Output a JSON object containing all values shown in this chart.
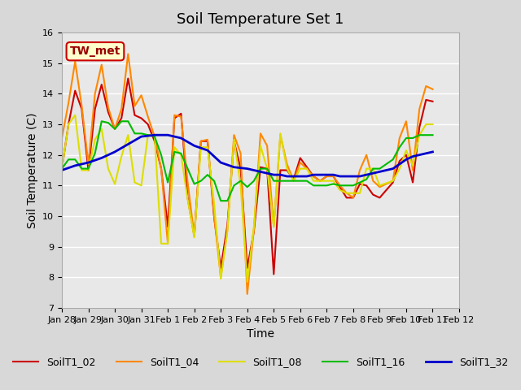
{
  "title": "Soil Temperature Set 1",
  "xlabel": "Time",
  "ylabel": "Soil Temperature (C)",
  "ylim": [
    7.0,
    16.0
  ],
  "yticks": [
    7.0,
    8.0,
    9.0,
    10.0,
    11.0,
    12.0,
    13.0,
    14.0,
    15.0,
    16.0
  ],
  "annotation_text": "TW_met",
  "annotation_bg": "#ffffcc",
  "annotation_border": "#cc0000",
  "series": {
    "SoilT1_02": {
      "color": "#cc0000",
      "linewidth": 1.5,
      "data": [
        [
          0.0,
          11.55
        ],
        [
          0.25,
          13.0
        ],
        [
          0.5,
          14.1
        ],
        [
          0.75,
          13.5
        ],
        [
          1.0,
          11.5
        ],
        [
          1.25,
          13.5
        ],
        [
          1.5,
          14.3
        ],
        [
          1.75,
          13.4
        ],
        [
          2.0,
          12.85
        ],
        [
          2.25,
          13.2
        ],
        [
          2.5,
          14.5
        ],
        [
          2.75,
          13.3
        ],
        [
          3.0,
          13.2
        ],
        [
          3.25,
          13.0
        ],
        [
          3.5,
          12.45
        ],
        [
          3.75,
          11.55
        ],
        [
          4.0,
          9.65
        ],
        [
          4.25,
          13.2
        ],
        [
          4.5,
          13.35
        ],
        [
          4.75,
          10.6
        ],
        [
          5.0,
          9.35
        ],
        [
          5.25,
          12.45
        ],
        [
          5.5,
          12.45
        ],
        [
          5.75,
          9.95
        ],
        [
          6.0,
          8.3
        ],
        [
          6.25,
          9.7
        ],
        [
          6.5,
          12.45
        ],
        [
          6.75,
          11.55
        ],
        [
          7.0,
          8.3
        ],
        [
          7.25,
          9.5
        ],
        [
          7.5,
          11.6
        ],
        [
          7.75,
          11.55
        ],
        [
          8.0,
          8.1
        ],
        [
          8.25,
          11.5
        ],
        [
          8.5,
          11.5
        ],
        [
          8.75,
          11.2
        ],
        [
          9.0,
          11.9
        ],
        [
          9.25,
          11.6
        ],
        [
          9.5,
          11.3
        ],
        [
          9.75,
          11.15
        ],
        [
          10.0,
          11.3
        ],
        [
          10.25,
          11.3
        ],
        [
          10.5,
          10.95
        ],
        [
          10.75,
          10.6
        ],
        [
          11.0,
          10.6
        ],
        [
          11.25,
          11.05
        ],
        [
          11.5,
          11.0
        ],
        [
          11.75,
          10.7
        ],
        [
          12.0,
          10.6
        ],
        [
          12.5,
          11.1
        ],
        [
          12.75,
          11.8
        ],
        [
          13.0,
          12.0
        ],
        [
          13.25,
          11.1
        ],
        [
          13.5,
          12.9
        ],
        [
          13.75,
          13.8
        ],
        [
          14.0,
          13.75
        ]
      ]
    },
    "SoilT1_04": {
      "color": "#ff8800",
      "linewidth": 1.5,
      "data": [
        [
          0.0,
          12.55
        ],
        [
          0.25,
          13.7
        ],
        [
          0.5,
          15.05
        ],
        [
          0.75,
          13.6
        ],
        [
          1.0,
          11.7
        ],
        [
          1.25,
          14.0
        ],
        [
          1.5,
          14.95
        ],
        [
          1.75,
          13.55
        ],
        [
          2.0,
          12.85
        ],
        [
          2.25,
          13.5
        ],
        [
          2.5,
          15.3
        ],
        [
          2.75,
          13.6
        ],
        [
          3.0,
          13.95
        ],
        [
          3.25,
          13.25
        ],
        [
          3.5,
          12.6
        ],
        [
          3.75,
          11.55
        ],
        [
          4.0,
          9.1
        ],
        [
          4.25,
          13.3
        ],
        [
          4.5,
          13.25
        ],
        [
          4.75,
          11.1
        ],
        [
          5.0,
          9.35
        ],
        [
          5.25,
          12.45
        ],
        [
          5.5,
          12.5
        ],
        [
          5.75,
          10.0
        ],
        [
          6.0,
          8.0
        ],
        [
          6.25,
          9.55
        ],
        [
          6.5,
          12.65
        ],
        [
          6.75,
          12.05
        ],
        [
          7.0,
          7.45
        ],
        [
          7.25,
          9.55
        ],
        [
          7.5,
          12.7
        ],
        [
          7.75,
          12.3
        ],
        [
          8.0,
          9.65
        ],
        [
          8.25,
          12.65
        ],
        [
          8.5,
          11.7
        ],
        [
          8.75,
          11.15
        ],
        [
          9.0,
          11.75
        ],
        [
          9.25,
          11.55
        ],
        [
          9.5,
          11.3
        ],
        [
          9.75,
          11.15
        ],
        [
          10.0,
          11.3
        ],
        [
          10.25,
          11.3
        ],
        [
          10.5,
          11.0
        ],
        [
          10.75,
          10.75
        ],
        [
          11.0,
          10.6
        ],
        [
          11.25,
          11.5
        ],
        [
          11.5,
          12.0
        ],
        [
          11.75,
          11.15
        ],
        [
          12.0,
          10.95
        ],
        [
          12.5,
          11.15
        ],
        [
          12.75,
          12.55
        ],
        [
          13.0,
          13.1
        ],
        [
          13.25,
          11.5
        ],
        [
          13.5,
          13.5
        ],
        [
          13.75,
          14.25
        ],
        [
          14.0,
          14.15
        ]
      ]
    },
    "SoilT1_08": {
      "color": "#dddd00",
      "linewidth": 1.5,
      "data": [
        [
          0.0,
          11.55
        ],
        [
          0.25,
          13.0
        ],
        [
          0.5,
          13.3
        ],
        [
          0.75,
          11.5
        ],
        [
          1.0,
          11.5
        ],
        [
          1.25,
          12.5
        ],
        [
          1.5,
          12.85
        ],
        [
          1.75,
          11.55
        ],
        [
          2.0,
          11.05
        ],
        [
          2.25,
          11.95
        ],
        [
          2.5,
          12.65
        ],
        [
          2.75,
          11.1
        ],
        [
          3.0,
          11.0
        ],
        [
          3.25,
          12.65
        ],
        [
          3.5,
          12.65
        ],
        [
          3.75,
          9.1
        ],
        [
          4.0,
          9.1
        ],
        [
          4.25,
          12.25
        ],
        [
          4.5,
          12.0
        ],
        [
          4.75,
          10.55
        ],
        [
          5.0,
          9.3
        ],
        [
          5.25,
          12.25
        ],
        [
          5.5,
          12.25
        ],
        [
          5.75,
          10.4
        ],
        [
          6.0,
          7.95
        ],
        [
          6.25,
          9.5
        ],
        [
          6.5,
          12.5
        ],
        [
          6.75,
          11.0
        ],
        [
          7.0,
          7.85
        ],
        [
          7.25,
          9.65
        ],
        [
          7.5,
          12.3
        ],
        [
          7.75,
          11.55
        ],
        [
          8.0,
          9.65
        ],
        [
          8.25,
          12.7
        ],
        [
          8.5,
          11.55
        ],
        [
          8.75,
          11.15
        ],
        [
          9.0,
          11.55
        ],
        [
          9.25,
          11.55
        ],
        [
          9.5,
          11.15
        ],
        [
          9.75,
          11.15
        ],
        [
          10.0,
          11.15
        ],
        [
          10.25,
          11.15
        ],
        [
          10.5,
          10.85
        ],
        [
          10.75,
          10.75
        ],
        [
          11.0,
          10.75
        ],
        [
          11.25,
          10.75
        ],
        [
          11.5,
          11.55
        ],
        [
          11.75,
          11.55
        ],
        [
          12.0,
          11.0
        ],
        [
          12.5,
          11.15
        ],
        [
          12.75,
          11.55
        ],
        [
          13.0,
          12.15
        ],
        [
          13.25,
          11.65
        ],
        [
          13.5,
          12.65
        ],
        [
          13.75,
          13.0
        ],
        [
          14.0,
          13.0
        ]
      ]
    },
    "SoilT1_16": {
      "color": "#00bb00",
      "linewidth": 1.5,
      "data": [
        [
          0.0,
          11.55
        ],
        [
          0.25,
          11.85
        ],
        [
          0.5,
          11.85
        ],
        [
          0.75,
          11.55
        ],
        [
          1.0,
          11.55
        ],
        [
          1.25,
          12.05
        ],
        [
          1.5,
          13.1
        ],
        [
          1.75,
          13.05
        ],
        [
          2.0,
          12.85
        ],
        [
          2.25,
          13.1
        ],
        [
          2.5,
          13.1
        ],
        [
          2.75,
          12.7
        ],
        [
          3.0,
          12.7
        ],
        [
          3.25,
          12.65
        ],
        [
          3.5,
          12.6
        ],
        [
          3.75,
          12.0
        ],
        [
          4.0,
          11.1
        ],
        [
          4.25,
          12.1
        ],
        [
          4.5,
          12.05
        ],
        [
          4.75,
          11.55
        ],
        [
          5.0,
          11.05
        ],
        [
          5.25,
          11.15
        ],
        [
          5.5,
          11.35
        ],
        [
          5.75,
          11.15
        ],
        [
          6.0,
          10.5
        ],
        [
          6.25,
          10.5
        ],
        [
          6.5,
          11.0
        ],
        [
          6.75,
          11.15
        ],
        [
          7.0,
          10.95
        ],
        [
          7.25,
          11.15
        ],
        [
          7.5,
          11.55
        ],
        [
          7.75,
          11.55
        ],
        [
          8.0,
          11.15
        ],
        [
          8.25,
          11.15
        ],
        [
          8.5,
          11.15
        ],
        [
          8.75,
          11.15
        ],
        [
          9.0,
          11.15
        ],
        [
          9.25,
          11.15
        ],
        [
          9.5,
          11.0
        ],
        [
          9.75,
          11.0
        ],
        [
          10.0,
          11.0
        ],
        [
          10.25,
          11.05
        ],
        [
          10.5,
          11.0
        ],
        [
          10.75,
          11.0
        ],
        [
          11.0,
          11.0
        ],
        [
          11.25,
          11.1
        ],
        [
          11.5,
          11.2
        ],
        [
          11.75,
          11.55
        ],
        [
          12.0,
          11.55
        ],
        [
          12.5,
          11.85
        ],
        [
          12.75,
          12.25
        ],
        [
          13.0,
          12.55
        ],
        [
          13.25,
          12.55
        ],
        [
          13.5,
          12.65
        ],
        [
          13.75,
          12.65
        ],
        [
          14.0,
          12.65
        ]
      ]
    },
    "SoilT1_32": {
      "color": "#0000cc",
      "linewidth": 2.0,
      "data": [
        [
          0.0,
          11.5
        ],
        [
          0.5,
          11.65
        ],
        [
          1.0,
          11.75
        ],
        [
          1.5,
          11.9
        ],
        [
          2.0,
          12.1
        ],
        [
          2.5,
          12.35
        ],
        [
          3.0,
          12.6
        ],
        [
          3.5,
          12.65
        ],
        [
          4.0,
          12.65
        ],
        [
          4.5,
          12.55
        ],
        [
          5.0,
          12.3
        ],
        [
          5.5,
          12.15
        ],
        [
          6.0,
          11.75
        ],
        [
          6.5,
          11.6
        ],
        [
          7.0,
          11.55
        ],
        [
          7.5,
          11.45
        ],
        [
          8.0,
          11.35
        ],
        [
          8.25,
          11.35
        ],
        [
          8.5,
          11.3
        ],
        [
          8.75,
          11.3
        ],
        [
          9.0,
          11.3
        ],
        [
          9.25,
          11.3
        ],
        [
          9.5,
          11.35
        ],
        [
          9.75,
          11.35
        ],
        [
          10.0,
          11.35
        ],
        [
          10.25,
          11.35
        ],
        [
          10.5,
          11.3
        ],
        [
          10.75,
          11.3
        ],
        [
          11.0,
          11.3
        ],
        [
          11.25,
          11.3
        ],
        [
          11.5,
          11.35
        ],
        [
          11.75,
          11.4
        ],
        [
          12.0,
          11.45
        ],
        [
          12.25,
          11.5
        ],
        [
          12.5,
          11.55
        ],
        [
          12.75,
          11.7
        ],
        [
          13.0,
          11.85
        ],
        [
          13.25,
          11.95
        ],
        [
          13.5,
          12.0
        ],
        [
          13.75,
          12.05
        ],
        [
          14.0,
          12.1
        ]
      ]
    }
  },
  "x_tick_labels": [
    "Jan 28",
    "Jan 29",
    "Jan 30",
    "Jan 31",
    "Feb 1",
    "Feb 2",
    "Feb 3",
    "Feb 4",
    "Feb 5",
    "Feb 6",
    "Feb 7",
    "Feb 8",
    "Feb 9",
    "Feb 10",
    "Feb 11",
    "Feb 12"
  ],
  "legend_order": [
    "SoilT1_02",
    "SoilT1_04",
    "SoilT1_08",
    "SoilT1_16",
    "SoilT1_32"
  ]
}
